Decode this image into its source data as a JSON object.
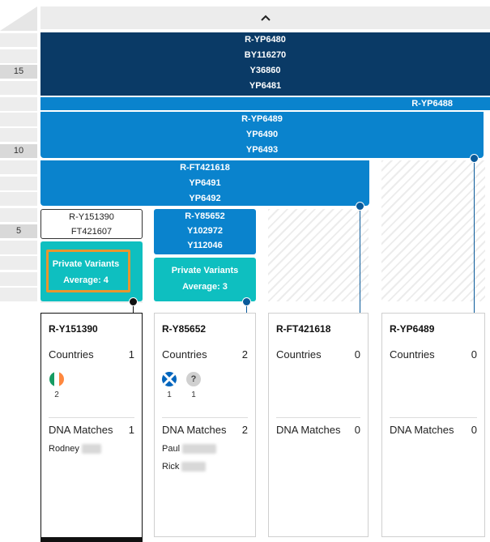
{
  "ruler": {
    "labels": [
      "15",
      "10",
      "5"
    ]
  },
  "header": {
    "collapse_icon": "chevron-up-icon"
  },
  "tree": {
    "block_yp6480": {
      "lines": [
        "R-YP6480",
        "BY116270",
        "Y36860",
        "YP6481"
      ]
    },
    "block_yp6488": {
      "label": "R-YP6488"
    },
    "block_yp6489": {
      "lines": [
        "R-YP6489",
        "YP6490",
        "YP6493"
      ]
    },
    "block_ft421618": {
      "lines": [
        "R-FT421618",
        "YP6491",
        "YP6492"
      ]
    },
    "block_y151390": {
      "lines": [
        "R-Y151390",
        "FT421607"
      ]
    },
    "block_y85652": {
      "lines": [
        "R-Y85652",
        "Y102972",
        "Y112046"
      ]
    },
    "private_variants_1": {
      "title": "Private Variants",
      "average": "Average: 4"
    },
    "private_variants_2": {
      "title": "Private Variants",
      "average": "Average: 3"
    }
  },
  "colors": {
    "dark_block": "#0a3a66",
    "mid_block": "#0a83cd",
    "teal_block": "#0ebfc0",
    "highlight": "#e8962e"
  },
  "cards": [
    {
      "title": "R-Y151390",
      "countries_label": "Countries",
      "countries_count": "1",
      "flags": [
        {
          "icon": "ireland-flag-icon",
          "count": "2"
        }
      ],
      "dna_label": "DNA Matches",
      "dna_count": "1",
      "names": [
        "Rodney"
      ]
    },
    {
      "title": "R-Y85652",
      "countries_label": "Countries",
      "countries_count": "2",
      "flags": [
        {
          "icon": "scotland-flag-icon",
          "count": "1"
        },
        {
          "icon": "unknown-country-icon",
          "symbol": "?",
          "count": "1"
        }
      ],
      "dna_label": "DNA Matches",
      "dna_count": "2",
      "names": [
        "Paul",
        "Rick"
      ]
    },
    {
      "title": "R-FT421618",
      "countries_label": "Countries",
      "countries_count": "0",
      "dna_label": "DNA Matches",
      "dna_count": "0"
    },
    {
      "title": "R-YP6489",
      "countries_label": "Countries",
      "countries_count": "0",
      "dna_label": "DNA Matches",
      "dna_count": "0"
    }
  ]
}
